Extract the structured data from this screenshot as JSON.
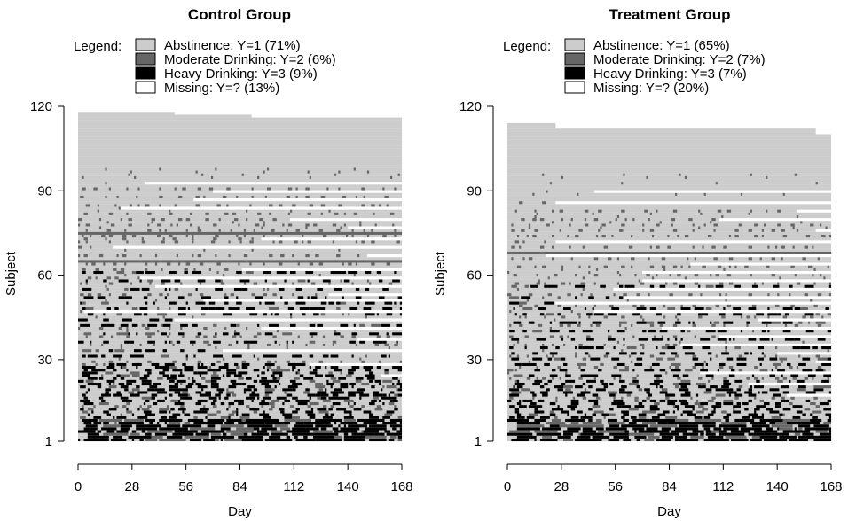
{
  "chart_data": [
    {
      "type": "heatmap",
      "title": "Control Group",
      "xlabel": "Day",
      "ylabel": "Subject",
      "x_ticks": [
        "0",
        "28",
        "56",
        "84",
        "112",
        "140",
        "168"
      ],
      "y_ticks": [
        "1",
        "30",
        "60",
        "90",
        "120"
      ],
      "xlim": [
        0,
        168
      ],
      "ylim": [
        1,
        120
      ],
      "n_subjects": 118,
      "n_days": 168,
      "legend_title": "Legend:",
      "legend": [
        {
          "label": "Abstinence: Y=1 (71%)",
          "color": "#cccccc",
          "code": 1,
          "percent": 71
        },
        {
          "label": "Moderate Drinking: Y=2 (6%)",
          "color": "#666666",
          "code": 2,
          "percent": 6
        },
        {
          "label": "Heavy Drinking: Y=3 (9%)",
          "color": "#000000",
          "code": 3,
          "percent": 9
        },
        {
          "label": "Missing: Y=? (13%)",
          "color": "#ffffff",
          "code": 0,
          "percent": 13
        }
      ],
      "pattern": {
        "heavy_rows": [
          1,
          2,
          3,
          4,
          5,
          6,
          7,
          8,
          9,
          10,
          11,
          12,
          14,
          15,
          16,
          17,
          18,
          19,
          20,
          21,
          22,
          23,
          24,
          25,
          26,
          27,
          28,
          31,
          33,
          36,
          39,
          42,
          44,
          46,
          48,
          50,
          52,
          55,
          58,
          61
        ],
        "moderate_rows": [
          13,
          29,
          35,
          38,
          41,
          47,
          53,
          57,
          59,
          62,
          64,
          67,
          70,
          72,
          73,
          74,
          76,
          78,
          80,
          82,
          85,
          88,
          91
        ],
        "solid_moderate_rows": [
          65,
          75
        ],
        "missing_runs": [
          {
            "row": 93,
            "from_day": 35
          },
          {
            "row": 90,
            "from_day": 70
          },
          {
            "row": 87,
            "from_day": 60
          },
          {
            "row": 84,
            "from_day": 22
          },
          {
            "row": 80,
            "from_day": 110
          },
          {
            "row": 77,
            "from_day": 140
          },
          {
            "row": 73,
            "from_day": 95
          },
          {
            "row": 70,
            "from_day": 18
          },
          {
            "row": 67,
            "from_day": 150
          },
          {
            "row": 62,
            "from_day": 85
          },
          {
            "row": 59,
            "from_day": 32
          },
          {
            "row": 56,
            "from_day": 40
          },
          {
            "row": 53,
            "from_day": 130
          },
          {
            "row": 51,
            "from_day": 65
          },
          {
            "row": 47,
            "from_day": 3
          },
          {
            "row": 44,
            "from_day": 50
          },
          {
            "row": 41,
            "from_day": 95
          },
          {
            "row": 37,
            "from_day": 145
          },
          {
            "row": 33,
            "from_day": 75
          },
          {
            "row": 28,
            "from_day": 120
          },
          {
            "row": 24,
            "from_day": 157
          }
        ],
        "subject_end_day": [
          {
            "from_row": 1,
            "to_row": 116,
            "day": 168
          },
          {
            "from_row": 117,
            "to_row": 117,
            "day": 90
          },
          {
            "from_row": 118,
            "to_row": 118,
            "day": 50
          }
        ]
      }
    },
    {
      "type": "heatmap",
      "title": "Treatment Group",
      "xlabel": "Day",
      "ylabel": "Subject",
      "x_ticks": [
        "0",
        "28",
        "56",
        "84",
        "112",
        "140",
        "168"
      ],
      "y_ticks": [
        "1",
        "30",
        "60",
        "90",
        "120"
      ],
      "xlim": [
        0,
        168
      ],
      "ylim": [
        1,
        120
      ],
      "n_subjects": 114,
      "n_days": 168,
      "legend_title": "Legend:",
      "legend": [
        {
          "label": "Abstinence: Y=1 (65%)",
          "color": "#cccccc",
          "code": 1,
          "percent": 65
        },
        {
          "label": "Moderate Drinking: Y=2 (7%)",
          "color": "#666666",
          "code": 2,
          "percent": 7
        },
        {
          "label": "Heavy Drinking: Y=3 (7%)",
          "color": "#000000",
          "code": 3,
          "percent": 7
        },
        {
          "label": "Missing: Y=? (20%)",
          "color": "#ffffff",
          "code": 0,
          "percent": 20
        }
      ],
      "pattern": {
        "heavy_rows": [
          1,
          2,
          3,
          4,
          5,
          6,
          7,
          8,
          9,
          10,
          11,
          12,
          13,
          14,
          15,
          17,
          18,
          19,
          20,
          21,
          22,
          24,
          26,
          28,
          30,
          32,
          34,
          37,
          40,
          43,
          46,
          48,
          50,
          52,
          56
        ],
        "moderate_rows": [
          16,
          23,
          27,
          31,
          35,
          38,
          42,
          45,
          49,
          53,
          57,
          60,
          63,
          66,
          70,
          72,
          74,
          76,
          78,
          80,
          83,
          86
        ],
        "solid_moderate_rows": [
          68
        ],
        "missing_runs": [
          {
            "row": 90,
            "from_day": 45
          },
          {
            "row": 86,
            "from_day": 25
          },
          {
            "row": 83,
            "from_day": 150
          },
          {
            "row": 80,
            "from_day": 110
          },
          {
            "row": 76,
            "from_day": 160
          },
          {
            "row": 72,
            "from_day": 25
          },
          {
            "row": 67,
            "from_day": 20
          },
          {
            "row": 64,
            "from_day": 95
          },
          {
            "row": 61,
            "from_day": 70
          },
          {
            "row": 58,
            "from_day": 70
          },
          {
            "row": 55,
            "from_day": 55
          },
          {
            "row": 52,
            "from_day": 60
          },
          {
            "row": 50,
            "from_day": 25
          },
          {
            "row": 47,
            "from_day": 45
          },
          {
            "row": 44,
            "from_day": 130
          },
          {
            "row": 41,
            "from_day": 80
          },
          {
            "row": 38,
            "from_day": 110
          },
          {
            "row": 35,
            "from_day": 90
          },
          {
            "row": 32,
            "from_day": 140
          },
          {
            "row": 29,
            "from_day": 160
          },
          {
            "row": 25,
            "from_day": 100
          },
          {
            "row": 21,
            "from_day": 125
          },
          {
            "row": 17,
            "from_day": 145
          }
        ],
        "subject_end_day": [
          {
            "from_row": 1,
            "to_row": 110,
            "day": 168
          },
          {
            "from_row": 111,
            "to_row": 112,
            "day": 160
          },
          {
            "from_row": 113,
            "to_row": 114,
            "day": 25
          }
        ]
      }
    }
  ]
}
